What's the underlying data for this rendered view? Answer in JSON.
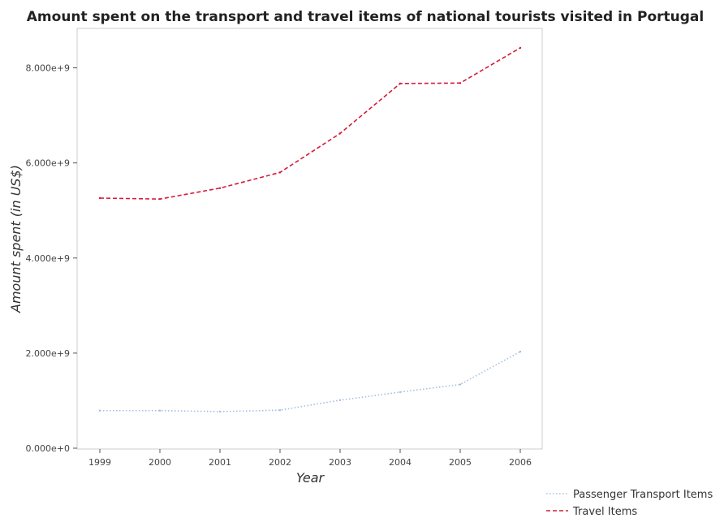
{
  "chart_data": {
    "type": "line",
    "title": "Amount spent on the transport and travel items of national tourists visited in Portugal",
    "xlabel": "Year",
    "ylabel": "Amount spent (in US$)",
    "categories": [
      "1999",
      "2000",
      "2001",
      "2002",
      "2003",
      "2004",
      "2005",
      "2006"
    ],
    "ylim": [
      0,
      9000000000
    ],
    "yticks": [
      0,
      2000000000,
      4000000000,
      6000000000,
      8000000000
    ],
    "ytick_labels": [
      "0.000e+0",
      "2.000e+9",
      "4.000e+9",
      "6.000e+9",
      "8.000e+9"
    ],
    "grid": false,
    "legend_position": "bottom-right",
    "series": [
      {
        "name": "Passenger Transport Items",
        "color": "#a3bfe0",
        "dash": "dotted",
        "values": [
          790000000,
          790000000,
          770000000,
          800000000,
          1010000000,
          1180000000,
          1340000000,
          2030000000
        ]
      },
      {
        "name": "Travel Items",
        "color": "#d41c3a",
        "dash": "dashed",
        "values": [
          5260000000,
          5240000000,
          5470000000,
          5800000000,
          6620000000,
          7670000000,
          7680000000,
          8420000000
        ]
      }
    ]
  }
}
